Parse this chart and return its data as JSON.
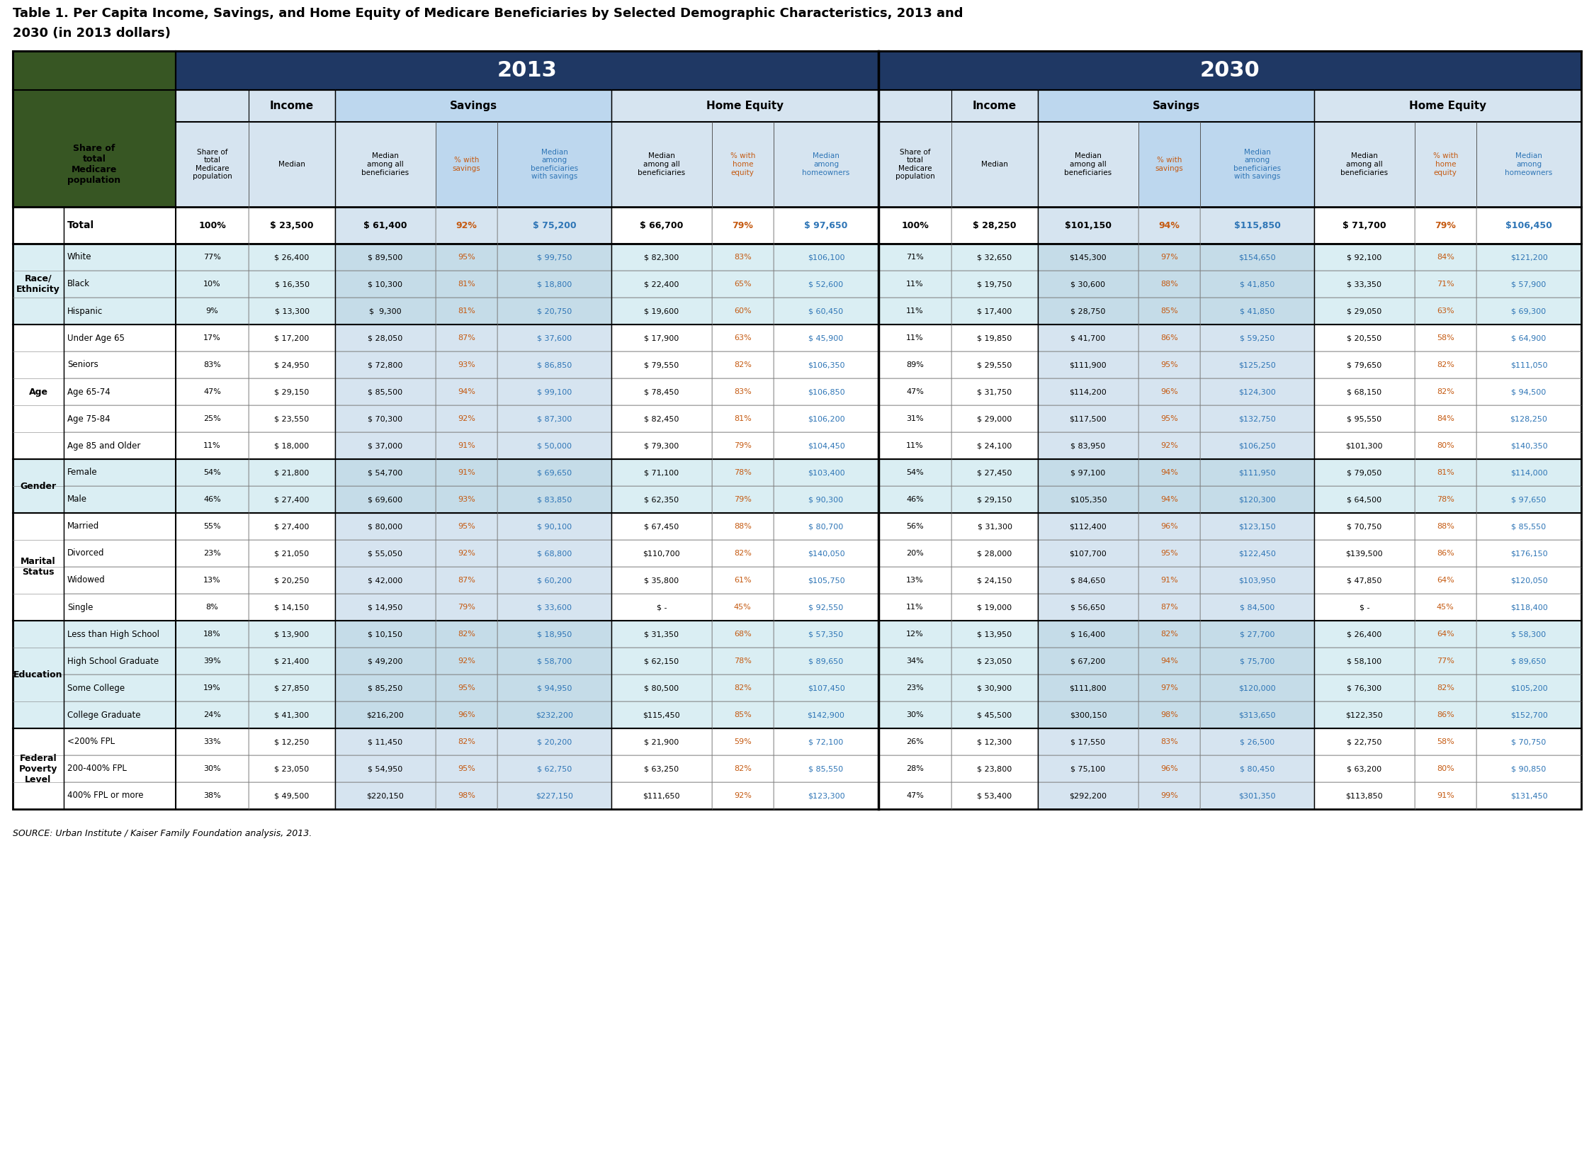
{
  "title_line1": "Table 1. Per Capita Income, Savings, and Home Equity of Medicare Beneficiaries by Selected Demographic Characteristics, 2013 and",
  "title_line2": "2030 (in 2013 dollars)",
  "source": "SOURCE: Urban Institute / Kaiser Family Foundation analysis, 2013.",
  "colors": {
    "dark_blue": "#1F3864",
    "header_blue_light": "#D6E4F0",
    "header_blue_mid": "#BDD7EE",
    "header_blue_dark": "#9DC3E6",
    "row_blue_light": "#DAEEF3",
    "row_blue_alt": "#C5DCE8",
    "row_white": "#FFFFFF",
    "green_dark": "#375623",
    "text_black": "#000000",
    "text_orange": "#C55A11",
    "text_blue": "#2E75B6",
    "text_white": "#FFFFFF",
    "border_dark": "#000000",
    "border_light": "#808080"
  },
  "col_widths_raw": [
    180,
    80,
    95,
    110,
    68,
    125,
    110,
    68,
    115,
    80,
    95,
    110,
    68,
    125,
    110,
    68,
    115
  ],
  "row_groups": [
    {
      "label": "",
      "bold_label": false,
      "rows": [
        {
          "category": "Total",
          "bold": true,
          "indent": false,
          "data": [
            "100%",
            "$ 23,500",
            "$ 61,400",
            "92%",
            "$ 75,200",
            "$ 66,700",
            "79%",
            "$ 97,650",
            "100%",
            "$ 28,250",
            "$101,150",
            "94%",
            "$115,850",
            "$ 71,700",
            "79%",
            "$106,450"
          ]
        }
      ]
    },
    {
      "label": "Race/\nEthnicity",
      "bold_label": true,
      "rows": [
        {
          "category": "White",
          "bold": false,
          "indent": true,
          "data": [
            "77%",
            "$ 26,400",
            "$ 89,500",
            "95%",
            "$ 99,750",
            "$ 82,300",
            "83%",
            "$106,100",
            "71%",
            "$ 32,650",
            "$145,300",
            "97%",
            "$154,650",
            "$ 92,100",
            "84%",
            "$121,200"
          ]
        },
        {
          "category": "Black",
          "bold": false,
          "indent": true,
          "data": [
            "10%",
            "$ 16,350",
            "$ 10,300",
            "81%",
            "$ 18,800",
            "$ 22,400",
            "65%",
            "$ 52,600",
            "11%",
            "$ 19,750",
            "$ 30,600",
            "88%",
            "$ 41,850",
            "$ 33,350",
            "71%",
            "$ 57,900"
          ]
        },
        {
          "category": "Hispanic",
          "bold": false,
          "indent": true,
          "data": [
            "9%",
            "$ 13,300",
            "$  9,300",
            "81%",
            "$ 20,750",
            "$ 19,600",
            "60%",
            "$ 60,450",
            "11%",
            "$ 17,400",
            "$ 28,750",
            "85%",
            "$ 41,850",
            "$ 29,050",
            "63%",
            "$ 69,300"
          ]
        }
      ]
    },
    {
      "label": "Age",
      "bold_label": true,
      "rows": [
        {
          "category": "Under Age 65",
          "bold": false,
          "indent": true,
          "data": [
            "17%",
            "$ 17,200",
            "$ 28,050",
            "87%",
            "$ 37,600",
            "$ 17,900",
            "63%",
            "$ 45,900",
            "11%",
            "$ 19,850",
            "$ 41,700",
            "86%",
            "$ 59,250",
            "$ 20,550",
            "58%",
            "$ 64,900"
          ]
        },
        {
          "category": "Seniors",
          "bold": false,
          "indent": true,
          "data": [
            "83%",
            "$ 24,950",
            "$ 72,800",
            "93%",
            "$ 86,850",
            "$ 79,550",
            "82%",
            "$106,350",
            "89%",
            "$ 29,550",
            "$111,900",
            "95%",
            "$125,250",
            "$ 79,650",
            "82%",
            "$111,050"
          ]
        },
        {
          "category": "Age 65-74",
          "bold": false,
          "indent": true,
          "data": [
            "47%",
            "$ 29,150",
            "$ 85,500",
            "94%",
            "$ 99,100",
            "$ 78,450",
            "83%",
            "$106,850",
            "47%",
            "$ 31,750",
            "$114,200",
            "96%",
            "$124,300",
            "$ 68,150",
            "82%",
            "$ 94,500"
          ]
        },
        {
          "category": "Age 75-84",
          "bold": false,
          "indent": true,
          "data": [
            "25%",
            "$ 23,550",
            "$ 70,300",
            "92%",
            "$ 87,300",
            "$ 82,450",
            "81%",
            "$106,200",
            "31%",
            "$ 29,000",
            "$117,500",
            "95%",
            "$132,750",
            "$ 95,550",
            "84%",
            "$128,250"
          ]
        },
        {
          "category": "Age 85 and Older",
          "bold": false,
          "indent": true,
          "data": [
            "11%",
            "$ 18,000",
            "$ 37,000",
            "91%",
            "$ 50,000",
            "$ 79,300",
            "79%",
            "$104,450",
            "11%",
            "$ 24,100",
            "$ 83,950",
            "92%",
            "$106,250",
            "$101,300",
            "80%",
            "$140,350"
          ]
        }
      ]
    },
    {
      "label": "Gender",
      "bold_label": true,
      "rows": [
        {
          "category": "Female",
          "bold": false,
          "indent": true,
          "data": [
            "54%",
            "$ 21,800",
            "$ 54,700",
            "91%",
            "$ 69,650",
            "$ 71,100",
            "78%",
            "$103,400",
            "54%",
            "$ 27,450",
            "$ 97,100",
            "94%",
            "$111,950",
            "$ 79,050",
            "81%",
            "$114,000"
          ]
        },
        {
          "category": "Male",
          "bold": false,
          "indent": true,
          "data": [
            "46%",
            "$ 27,400",
            "$ 69,600",
            "93%",
            "$ 83,850",
            "$ 62,350",
            "79%",
            "$ 90,300",
            "46%",
            "$ 29,150",
            "$105,350",
            "94%",
            "$120,300",
            "$ 64,500",
            "78%",
            "$ 97,650"
          ]
        }
      ]
    },
    {
      "label": "Marital\nStatus",
      "bold_label": true,
      "rows": [
        {
          "category": "Married",
          "bold": false,
          "indent": true,
          "data": [
            "55%",
            "$ 27,400",
            "$ 80,000",
            "95%",
            "$ 90,100",
            "$ 67,450",
            "88%",
            "$ 80,700",
            "56%",
            "$ 31,300",
            "$112,400",
            "96%",
            "$123,150",
            "$ 70,750",
            "88%",
            "$ 85,550"
          ]
        },
        {
          "category": "Divorced",
          "bold": false,
          "indent": true,
          "data": [
            "23%",
            "$ 21,050",
            "$ 55,050",
            "92%",
            "$ 68,800",
            "$110,700",
            "82%",
            "$140,050",
            "20%",
            "$ 28,000",
            "$107,700",
            "95%",
            "$122,450",
            "$139,500",
            "86%",
            "$176,150"
          ]
        },
        {
          "category": "Widowed",
          "bold": false,
          "indent": true,
          "data": [
            "13%",
            "$ 20,250",
            "$ 42,000",
            "87%",
            "$ 60,200",
            "$ 35,800",
            "61%",
            "$105,750",
            "13%",
            "$ 24,150",
            "$ 84,650",
            "91%",
            "$103,950",
            "$ 47,850",
            "64%",
            "$120,050"
          ]
        },
        {
          "category": "Single",
          "bold": false,
          "indent": true,
          "data": [
            "8%",
            "$ 14,150",
            "$ 14,950",
            "79%",
            "$ 33,600",
            "$ -",
            "45%",
            "$ 92,550",
            "11%",
            "$ 19,000",
            "$ 56,650",
            "87%",
            "$ 84,500",
            "$ -",
            "45%",
            "$118,400"
          ]
        }
      ]
    },
    {
      "label": "Education",
      "bold_label": true,
      "rows": [
        {
          "category": "Less than High School",
          "bold": false,
          "indent": true,
          "data": [
            "18%",
            "$ 13,900",
            "$ 10,150",
            "82%",
            "$ 18,950",
            "$ 31,350",
            "68%",
            "$ 57,350",
            "12%",
            "$ 13,950",
            "$ 16,400",
            "82%",
            "$ 27,700",
            "$ 26,400",
            "64%",
            "$ 58,300"
          ]
        },
        {
          "category": "High School Graduate",
          "bold": false,
          "indent": true,
          "data": [
            "39%",
            "$ 21,400",
            "$ 49,200",
            "92%",
            "$ 58,700",
            "$ 62,150",
            "78%",
            "$ 89,650",
            "34%",
            "$ 23,050",
            "$ 67,200",
            "94%",
            "$ 75,700",
            "$ 58,100",
            "77%",
            "$ 89,650"
          ]
        },
        {
          "category": "Some College",
          "bold": false,
          "indent": true,
          "data": [
            "19%",
            "$ 27,850",
            "$ 85,250",
            "95%",
            "$ 94,950",
            "$ 80,500",
            "82%",
            "$107,450",
            "23%",
            "$ 30,900",
            "$111,800",
            "97%",
            "$120,000",
            "$ 76,300",
            "82%",
            "$105,200"
          ]
        },
        {
          "category": "College Graduate",
          "bold": false,
          "indent": true,
          "data": [
            "24%",
            "$ 41,300",
            "$216,200",
            "96%",
            "$232,200",
            "$115,450",
            "85%",
            "$142,900",
            "30%",
            "$ 45,500",
            "$300,150",
            "98%",
            "$313,650",
            "$122,350",
            "86%",
            "$152,700"
          ]
        }
      ]
    },
    {
      "label": "Federal\nPoverty\nLevel",
      "bold_label": true,
      "rows": [
        {
          "category": "<200% FPL",
          "bold": false,
          "indent": true,
          "data": [
            "33%",
            "$ 12,250",
            "$ 11,450",
            "82%",
            "$ 20,200",
            "$ 21,900",
            "59%",
            "$ 72,100",
            "26%",
            "$ 12,300",
            "$ 17,550",
            "83%",
            "$ 26,500",
            "$ 22,750",
            "58%",
            "$ 70,750"
          ]
        },
        {
          "category": "200-400% FPL",
          "bold": false,
          "indent": true,
          "data": [
            "30%",
            "$ 23,050",
            "$ 54,950",
            "95%",
            "$ 62,750",
            "$ 63,250",
            "82%",
            "$ 85,550",
            "28%",
            "$ 23,800",
            "$ 75,100",
            "96%",
            "$ 80,450",
            "$ 63,200",
            "80%",
            "$ 90,850"
          ]
        },
        {
          "category": "400% FPL or more",
          "bold": false,
          "indent": true,
          "data": [
            "38%",
            "$ 49,500",
            "$220,150",
            "98%",
            "$227,150",
            "$111,650",
            "92%",
            "$123,300",
            "47%",
            "$ 53,400",
            "$292,200",
            "99%",
            "$301,350",
            "$113,850",
            "91%",
            "$131,450"
          ]
        }
      ]
    }
  ]
}
